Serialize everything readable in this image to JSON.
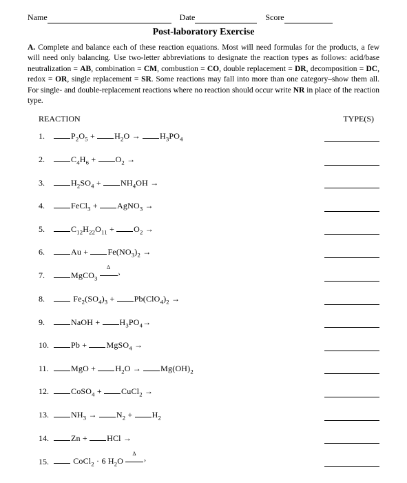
{
  "header": {
    "name_label": "Name",
    "date_label": "Date",
    "score_label": "Score"
  },
  "title": "Post-laboratory Exercise",
  "instructions": {
    "section_label": "A.",
    "text_before": " Complete and balance each of these reaction equations. Most will need formulas for the products, a few will need only balancing. Use two-letter abbreviations to designate the reaction types as follows: acid/base neutralization = ",
    "ab": "AB",
    "t2": ", combination = ",
    "cm": "CM",
    "t3": ", combustion = ",
    "co": "CO",
    "t4": ", double replacement = ",
    "dr": "DR",
    "t5": ", decomposition = ",
    "dc": "DC",
    "t6": ", redox = ",
    "or": "OR",
    "t7": ", single replacement = ",
    "sr": "SR",
    "t8": ". Some reactions may fall into more than one category–show them all. For single- and double-replacement reactions where no reaction should occur write ",
    "nr": "NR",
    "t9": " in place of the reaction type."
  },
  "columns": {
    "left": "REACTION",
    "right": "TYPE(S)"
  },
  "questions": [
    {
      "n": "1.",
      "html": "<span class='blank'></span>P<sub>2</sub>O<sub>5</sub> + <span class='blank'></span>H<sub>2</sub>O → <span class='blank'></span>H<sub>3</sub>PO<sub>4</sub>"
    },
    {
      "n": "2.",
      "html": "<span class='blank'></span>C<sub>4</sub>H<sub>6</sub> + <span class='blank'></span>O<sub>2</sub> →"
    },
    {
      "n": "3.",
      "html": "<span class='blank'></span>H<sub>2</sub>SO<sub>4</sub> + <span class='blank'></span>NH<sub>4</sub>OH →"
    },
    {
      "n": "4.",
      "html": "<span class='blank'></span>FeCl<sub>3</sub> + <span class='blank'></span>AgNO<sub>3</sub> →"
    },
    {
      "n": "5.",
      "html": "<span class='blank'></span>C<sub>12</sub>H<sub>22</sub>O<sub>11</sub> + <span class='blank'></span>O<sub>2</sub> →"
    },
    {
      "n": "6.",
      "html": "<span class='blank'></span>Au + <span class='blank'></span>Fe(NO<sub>3</sub>)<sub>2</sub> →"
    },
    {
      "n": "7.",
      "html": "<span class='blank'></span>MgCO<sub>3</sub> <span class='delta-arrow'><span class='delta'>Δ</span><span class='line'></span><span class='head'>›</span></span>"
    },
    {
      "n": "8.",
      "html": "<span class='blank'></span> Fe<sub>2</sub>(SO<sub>4</sub>)<sub>3</sub> + <span class='blank'></span>Pb(ClO<sub>4</sub>)<sub>2</sub> →"
    },
    {
      "n": "9.",
      "html": "<span class='blank'></span>NaOH + <span class='blank'></span>H<sub>3</sub>PO<sub>4</sub>→"
    },
    {
      "n": "10.",
      "html": "<span class='blank'></span>Pb + <span class='blank'></span>MgSO<sub>4</sub> →"
    },
    {
      "n": "11.",
      "html": "<span class='blank'></span>MgO + <span class='blank'></span>H<sub>2</sub>O → <span class='blank'></span>Mg(OH)<sub>2</sub>"
    },
    {
      "n": "12.",
      "html": "<span class='blank'></span>CoSO<sub>4</sub> + <span class='blank'></span>CuCl<sub>2</sub> →"
    },
    {
      "n": "13.",
      "html": "<span class='blank'></span>NH<sub>3</sub> → <span class='blank'></span>N<sub>2</sub> + <span class='blank'></span>H<sub>2</sub>"
    },
    {
      "n": "14.",
      "html": "<span class='blank'></span>Zn + <span class='blank'></span>HCl →"
    },
    {
      "n": "15.",
      "html": "<span class='blank'></span> CoCl<sub>2</sub> · 6 H<sub>2</sub>O <span class='delta-arrow'><span class='delta'>Δ</span><span class='line'></span><span class='head'>›</span></span>"
    }
  ]
}
